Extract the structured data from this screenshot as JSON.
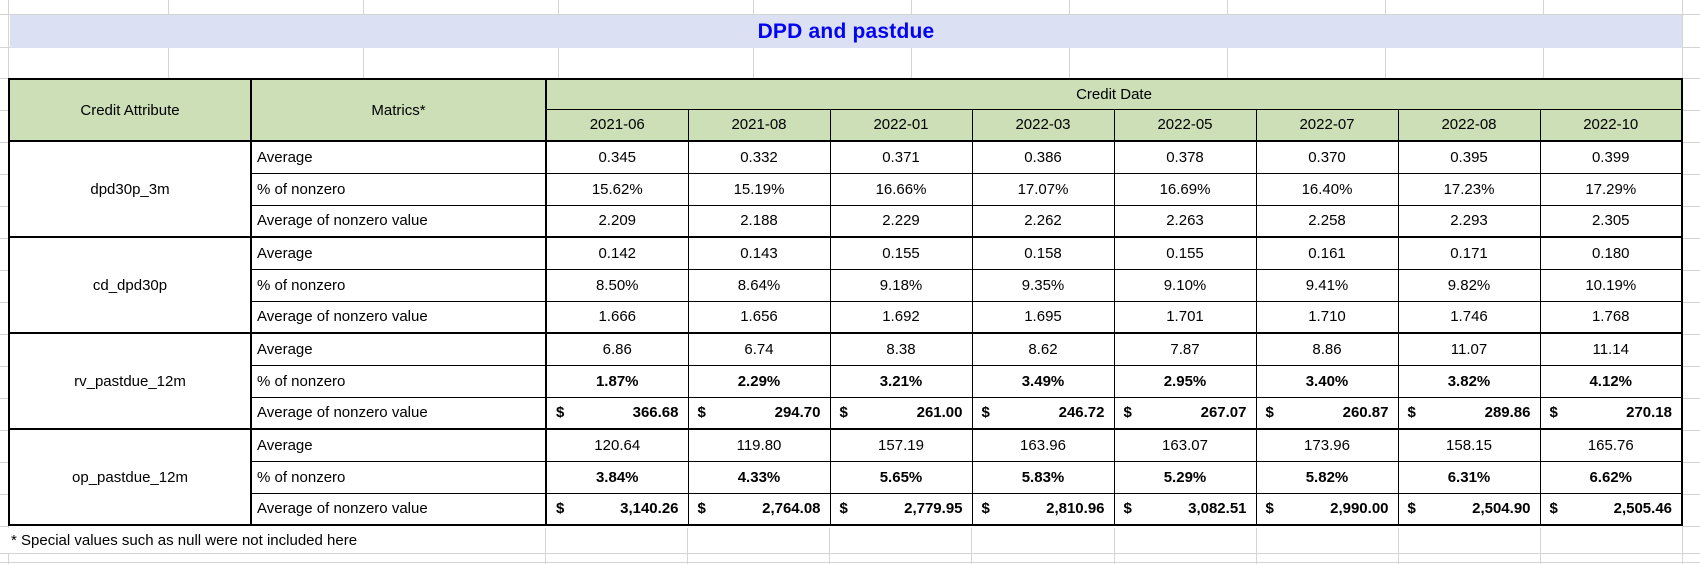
{
  "title": "DPD and pastdue",
  "footnote": "* Special values such as null were not included here",
  "colors": {
    "title_bg": "#dbe0f2",
    "title_text": "#0404f0",
    "header_bg": "#ccdfb6",
    "grid_line": "#d4d4d4",
    "table_border": "#000000"
  },
  "table": {
    "headers": {
      "credit_attribute": "Credit Attribute",
      "matrics": "Matrics*",
      "credit_date": "Credit Date"
    },
    "dates": [
      "2021-06",
      "2021-08",
      "2022-01",
      "2022-03",
      "2022-05",
      "2022-07",
      "2022-08",
      "2022-10"
    ],
    "currency_symbol": "$",
    "groups": [
      {
        "attribute": "dpd30p_3m",
        "rows": [
          {
            "metric": "Average",
            "style": "plain",
            "values": [
              "0.345",
              "0.332",
              "0.371",
              "0.386",
              "0.378",
              "0.370",
              "0.395",
              "0.399"
            ]
          },
          {
            "metric": "% of nonzero",
            "style": "plain",
            "values": [
              "15.62%",
              "15.19%",
              "16.66%",
              "17.07%",
              "16.69%",
              "16.40%",
              "17.23%",
              "17.29%"
            ]
          },
          {
            "metric": "Average of nonzero value",
            "style": "plain",
            "values": [
              "2.209",
              "2.188",
              "2.229",
              "2.262",
              "2.263",
              "2.258",
              "2.293",
              "2.305"
            ]
          }
        ]
      },
      {
        "attribute": "cd_dpd30p",
        "rows": [
          {
            "metric": "Average",
            "style": "plain",
            "values": [
              "0.142",
              "0.143",
              "0.155",
              "0.158",
              "0.155",
              "0.161",
              "0.171",
              "0.180"
            ]
          },
          {
            "metric": "% of nonzero",
            "style": "plain",
            "values": [
              "8.50%",
              "8.64%",
              "9.18%",
              "9.35%",
              "9.10%",
              "9.41%",
              "9.82%",
              "10.19%"
            ]
          },
          {
            "metric": "Average of nonzero value",
            "style": "plain",
            "values": [
              "1.666",
              "1.656",
              "1.692",
              "1.695",
              "1.701",
              "1.710",
              "1.746",
              "1.768"
            ]
          }
        ]
      },
      {
        "attribute": "rv_pastdue_12m",
        "rows": [
          {
            "metric": "Average",
            "style": "plain",
            "values": [
              "6.86",
              "6.74",
              "8.38",
              "8.62",
              "7.87",
              "8.86",
              "11.07",
              "11.14"
            ]
          },
          {
            "metric": "% of nonzero",
            "style": "bold",
            "values": [
              "1.87%",
              "2.29%",
              "3.21%",
              "3.49%",
              "2.95%",
              "3.40%",
              "3.82%",
              "4.12%"
            ]
          },
          {
            "metric": "Average of nonzero value",
            "style": "currency",
            "values": [
              "366.68",
              "294.70",
              "261.00",
              "246.72",
              "267.07",
              "260.87",
              "289.86",
              "270.18"
            ]
          }
        ]
      },
      {
        "attribute": "op_pastdue_12m",
        "rows": [
          {
            "metric": "Average",
            "style": "plain",
            "values": [
              "120.64",
              "119.80",
              "157.19",
              "163.96",
              "163.07",
              "173.96",
              "158.15",
              "165.76"
            ]
          },
          {
            "metric": "% of nonzero",
            "style": "bold",
            "values": [
              "3.84%",
              "4.33%",
              "5.65%",
              "5.83%",
              "5.29%",
              "5.82%",
              "6.31%",
              "6.62%"
            ]
          },
          {
            "metric": "Average of nonzero value",
            "style": "currency",
            "values": [
              "3,140.26",
              "2,764.08",
              "2,779.95",
              "2,810.96",
              "3,082.51",
              "2,990.00",
              "2,504.90",
              "2,505.46"
            ]
          }
        ]
      }
    ]
  }
}
